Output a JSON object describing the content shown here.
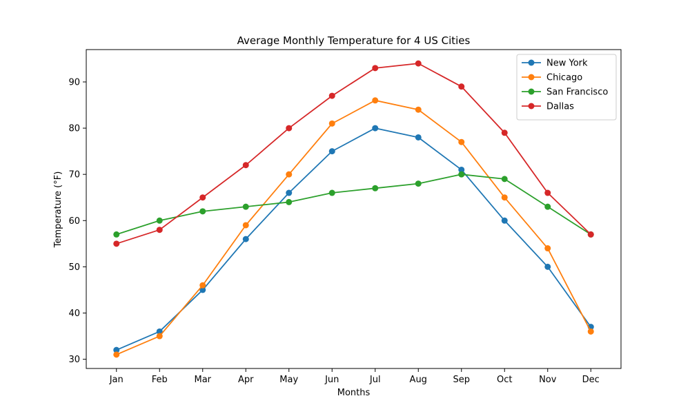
{
  "chart_data": {
    "type": "line",
    "title": "Average Monthly Temperature for 4 US Cities",
    "xlabel": "Months",
    "ylabel": "Temperature (°F)",
    "categories": [
      "Jan",
      "Feb",
      "Mar",
      "Apr",
      "May",
      "Jun",
      "Jul",
      "Aug",
      "Sep",
      "Oct",
      "Nov",
      "Dec"
    ],
    "ylim": [
      28,
      97
    ],
    "yticks": [
      30,
      40,
      50,
      60,
      70,
      80,
      90
    ],
    "grid": false,
    "legend_position": "top-right",
    "series": [
      {
        "name": "New York",
        "color": "#1f77b4",
        "values": [
          32,
          36,
          45,
          56,
          66,
          75,
          80,
          78,
          71,
          60,
          50,
          37
        ]
      },
      {
        "name": "Chicago",
        "color": "#ff7f0e",
        "values": [
          31,
          35,
          46,
          59,
          70,
          81,
          86,
          84,
          77,
          65,
          54,
          36
        ]
      },
      {
        "name": "San Francisco",
        "color": "#2ca02c",
        "values": [
          57,
          60,
          62,
          63,
          64,
          66,
          67,
          68,
          70,
          69,
          63,
          57
        ]
      },
      {
        "name": "Dallas",
        "color": "#d62728",
        "values": [
          55,
          58,
          65,
          72,
          80,
          87,
          93,
          94,
          89,
          79,
          66,
          57
        ]
      }
    ]
  }
}
